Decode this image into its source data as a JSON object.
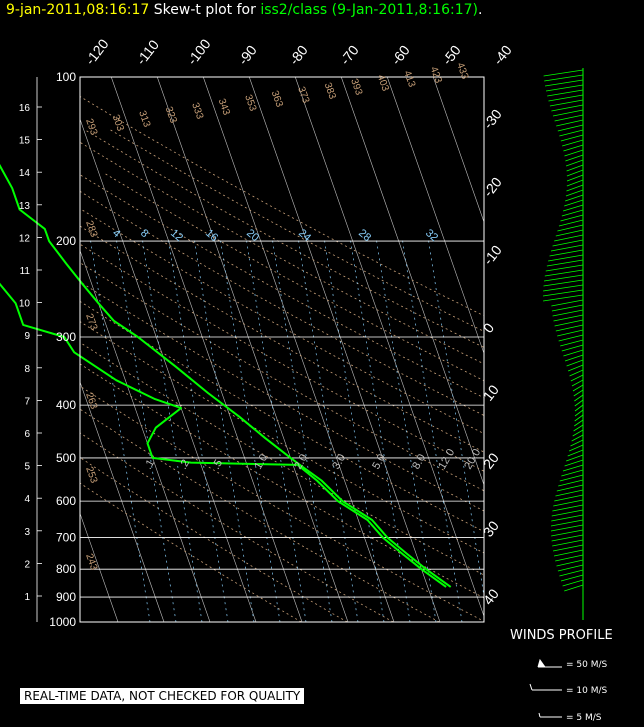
{
  "header": {
    "timestamp": "9-jan-2011,08:16:17",
    "label": "Skew-t plot for",
    "station": "iss2/class",
    "time_parenthetical": "(9-Jan-2011,8:16:17)",
    "period": "."
  },
  "notice": "REAL-TIME DATA, NOT CHECKED FOR QUALITY",
  "winds": {
    "title": "WINDS PROFILE",
    "key": [
      "= 50 M/S",
      "= 10 M/S",
      "= 5 M/S"
    ]
  },
  "colors": {
    "background": "#000000",
    "temperature": "#00ff00",
    "dewpoint": "#00ff00",
    "wind_barbs": "#00ff00",
    "isobars": "#ffffff",
    "isotherms": "#ffffff",
    "dry_adiabats": "#c8a078",
    "mixing_ratio": "#87cefa"
  },
  "chart_data": {
    "type": "skew-t",
    "pressure_axis": {
      "ticks": [
        1000,
        900,
        800,
        700,
        600,
        500,
        400,
        300,
        200,
        100
      ],
      "label_ticks": [
        "1000",
        "900",
        "800",
        "700",
        "600",
        "500",
        "400",
        "300",
        "200",
        "100"
      ],
      "scale": "log",
      "range_hpa": [
        1000,
        100
      ]
    },
    "height_axis": {
      "ticks_km": [
        "1",
        "2",
        "3",
        "4",
        "5",
        "6",
        "7",
        "8",
        "9",
        "10",
        "11",
        "12",
        "13",
        "14",
        "15",
        "16"
      ]
    },
    "isotherm_labels_top": [
      "-120",
      "-110",
      "-100",
      "-90",
      "-80",
      "-70",
      "-60",
      "-50",
      "-40"
    ],
    "isotherm_labels_right": [
      "-30",
      "-20",
      "-10",
      "0",
      "10",
      "20",
      "30",
      "40"
    ],
    "dry_adiabat_labels": [
      "293",
      "303",
      "313",
      "323",
      "333",
      "343",
      "353",
      "363",
      "373",
      "383",
      "393",
      "403",
      "413",
      "423",
      "433",
      "283",
      "273",
      "263",
      "253",
      "243"
    ],
    "mixing_ratio_labels_upper": [
      "4",
      "8",
      "12",
      "16",
      "20",
      "24",
      "28",
      "32"
    ],
    "mixing_ratio_labels_lower": [
      ".1",
      ".2",
      ".5",
      "1.0",
      "2.0",
      "3.0",
      "5.0",
      "8.0",
      "12.0",
      "20.0"
    ],
    "temperature_profile": [
      {
        "p": 862,
        "t": 5
      },
      {
        "p": 800,
        "t": 1
      },
      {
        "p": 750,
        "t": -2
      },
      {
        "p": 700,
        "t": -5
      },
      {
        "p": 650,
        "t": -7
      },
      {
        "p": 600,
        "t": -12
      },
      {
        "p": 550,
        "t": -15
      },
      {
        "p": 520,
        "t": -18
      },
      {
        "p": 500,
        "t": -20
      },
      {
        "p": 460,
        "t": -24
      },
      {
        "p": 420,
        "t": -28
      },
      {
        "p": 380,
        "t": -33
      },
      {
        "p": 340,
        "t": -38
      },
      {
        "p": 300,
        "t": -44
      },
      {
        "p": 280,
        "t": -48
      },
      {
        "p": 260,
        "t": -50
      },
      {
        "p": 240,
        "t": -52
      },
      {
        "p": 220,
        "t": -54
      },
      {
        "p": 200,
        "t": -56
      },
      {
        "p": 190,
        "t": -56
      },
      {
        "p": 175,
        "t": -60
      },
      {
        "p": 160,
        "t": -60
      },
      {
        "p": 145,
        "t": -61
      },
      {
        "p": 130,
        "t": -63
      },
      {
        "p": 115,
        "t": -64
      },
      {
        "p": 100,
        "t": -65
      }
    ],
    "dewpoint_profile": [
      {
        "p": 862,
        "t": 4
      },
      {
        "p": 800,
        "t": 0
      },
      {
        "p": 750,
        "t": -3
      },
      {
        "p": 700,
        "t": -6
      },
      {
        "p": 650,
        "t": -8
      },
      {
        "p": 600,
        "t": -13
      },
      {
        "p": 550,
        "t": -16
      },
      {
        "p": 515,
        "t": -19
      },
      {
        "p": 510,
        "t": -42
      },
      {
        "p": 500,
        "t": -50
      },
      {
        "p": 470,
        "t": -50
      },
      {
        "p": 440,
        "t": -47
      },
      {
        "p": 405,
        "t": -40
      },
      {
        "p": 390,
        "t": -45
      },
      {
        "p": 360,
        "t": -52
      },
      {
        "p": 320,
        "t": -59
      },
      {
        "p": 300,
        "t": -60
      },
      {
        "p": 285,
        "t": -68
      },
      {
        "p": 260,
        "t": -68
      },
      {
        "p": 230,
        "t": -71
      },
      {
        "p": 200,
        "t": -75
      },
      {
        "p": 180,
        "t": -78
      },
      {
        "p": 160,
        "t": -80
      },
      {
        "p": 140,
        "t": -83
      },
      {
        "p": 120,
        "t": -86
      },
      {
        "p": 100,
        "t": -89
      }
    ]
  }
}
